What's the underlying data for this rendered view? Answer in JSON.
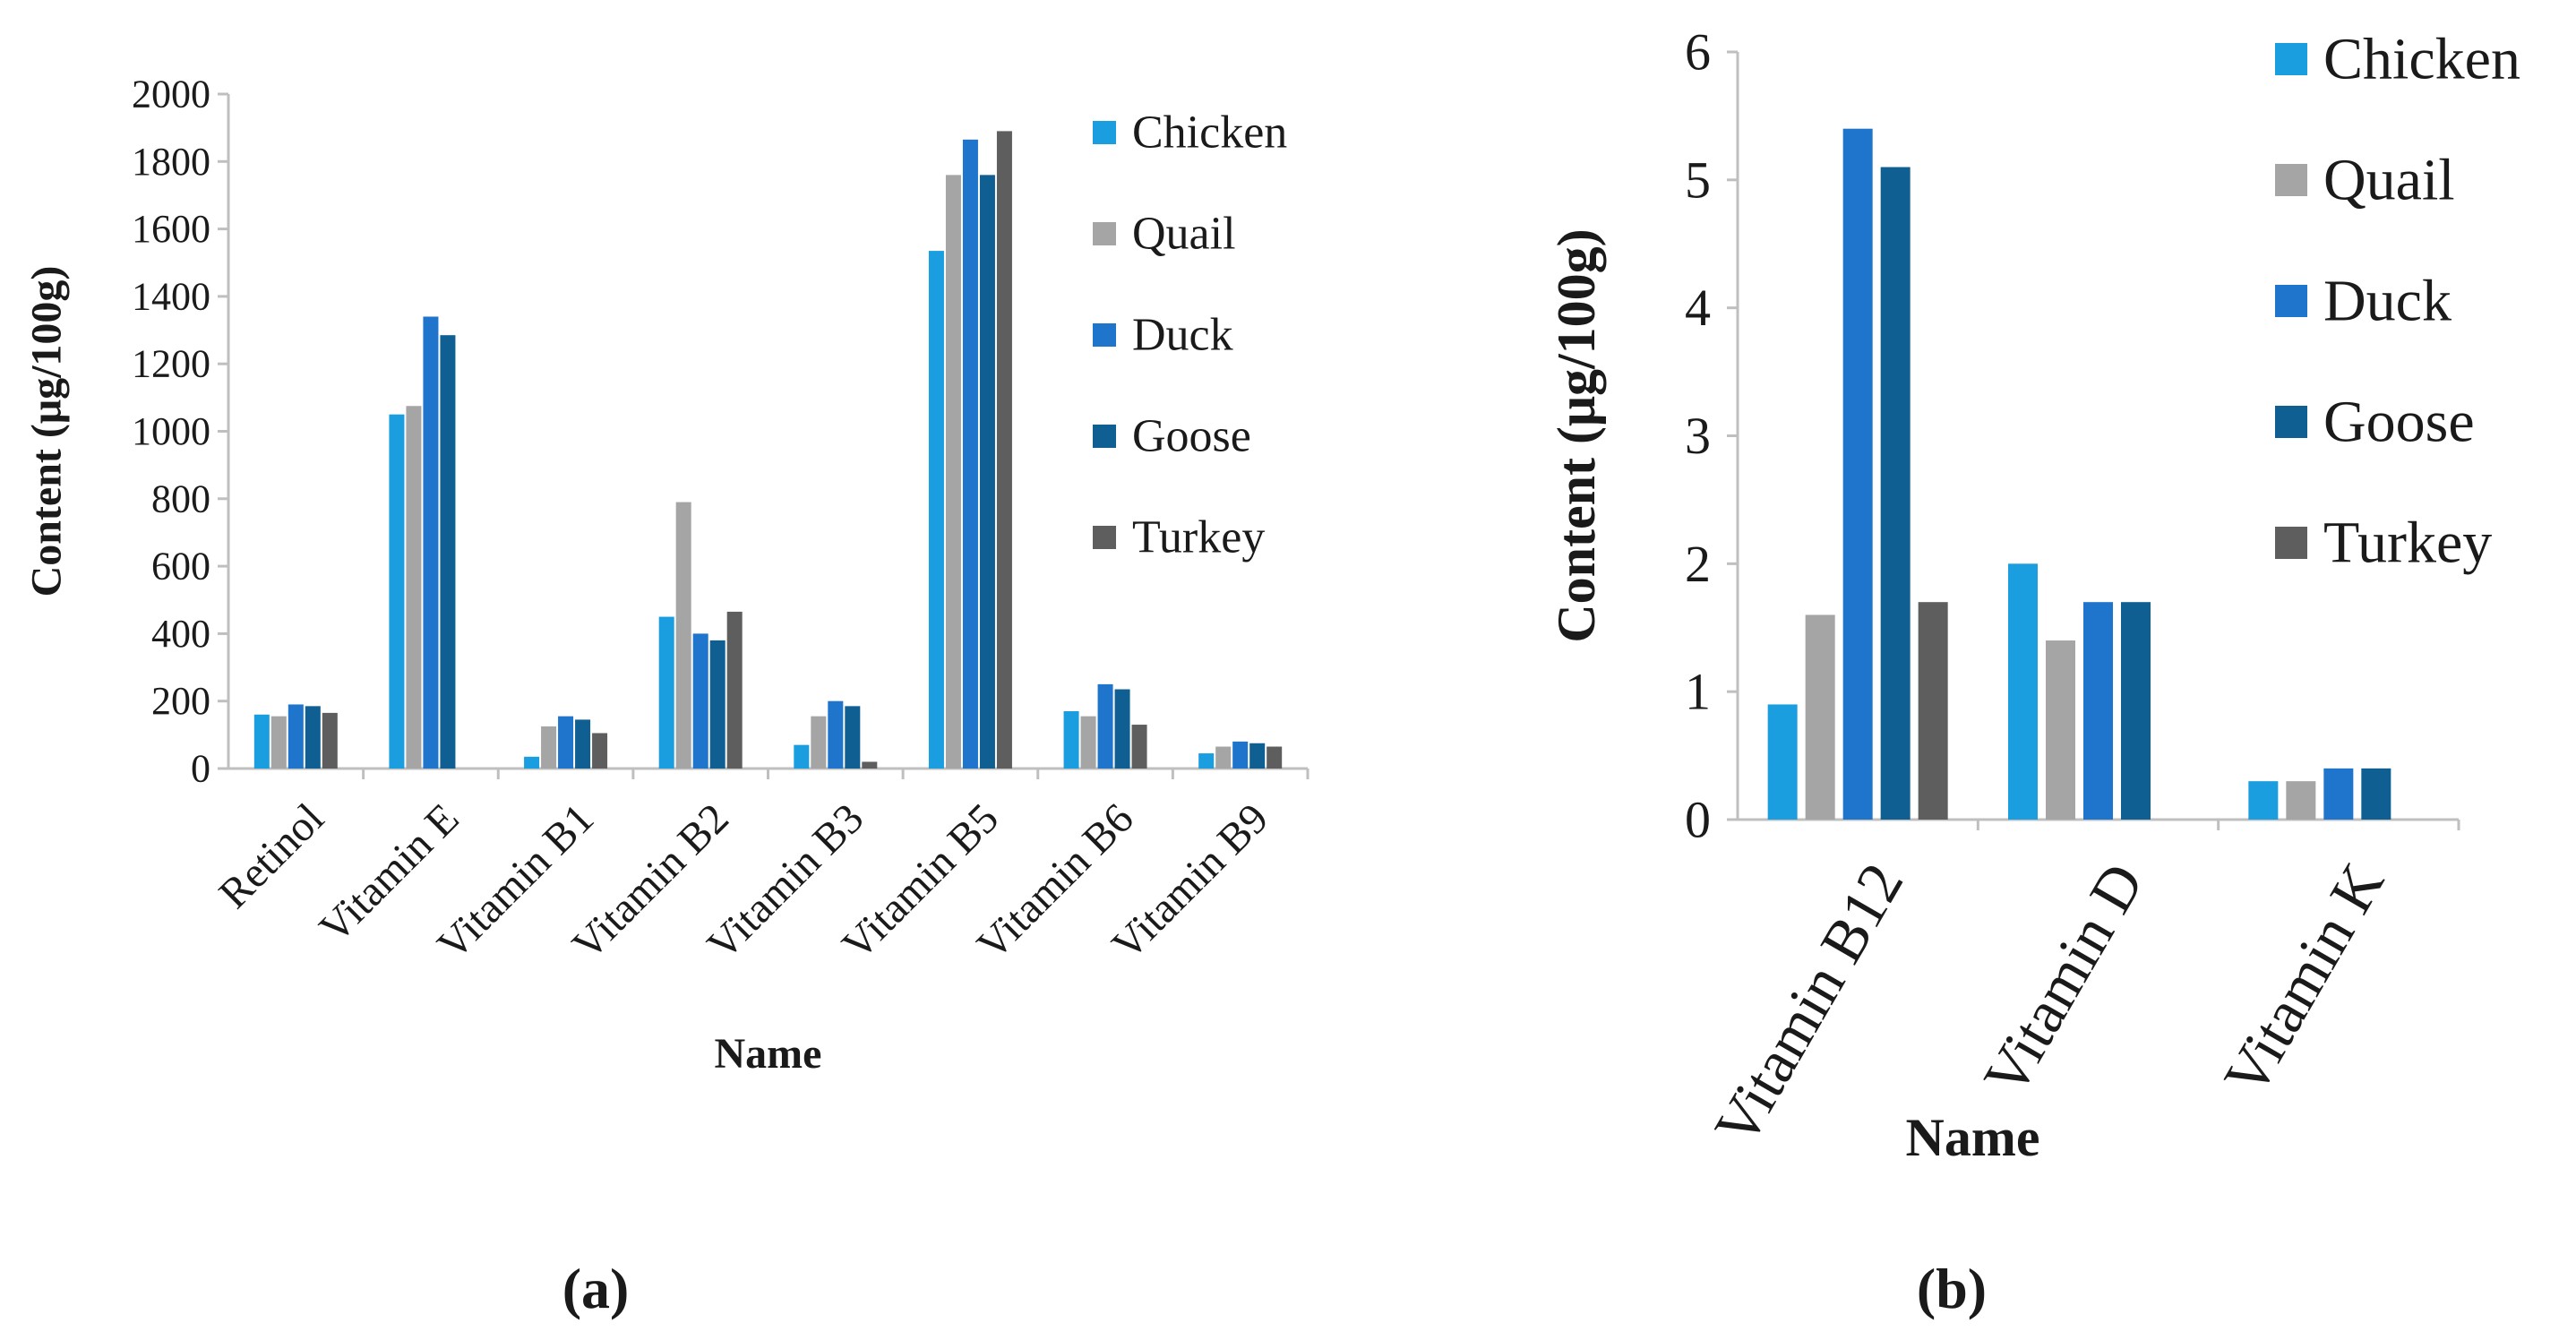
{
  "series_meta": [
    {
      "name": "Chicken",
      "color": "#1a9ee0"
    },
    {
      "name": "Quail",
      "color": "#a5a5a5"
    },
    {
      "name": "Duck",
      "color": "#1f74cc"
    },
    {
      "name": "Goose",
      "color": "#0f5f93"
    },
    {
      "name": "Turkey",
      "color": "#5e5e5e"
    }
  ],
  "chart_data": [
    {
      "type": "bar",
      "label": "(a)",
      "xlabel": "Name",
      "ylabel": "Content (μg/100g)",
      "ylim": [
        0,
        2000
      ],
      "yticks": [
        0,
        200,
        400,
        600,
        800,
        1000,
        1200,
        1400,
        1600,
        1800,
        2000
      ],
      "grid": false,
      "legend": "right",
      "categories": [
        "Retinol",
        "Vitamin E",
        "Vitamin B1",
        "Vitamin B2",
        "Vitamin B3",
        "Vitamin B5",
        "Vitamin B6",
        "Vitamin B9"
      ],
      "series": [
        {
          "name": "Chicken",
          "values": [
            160,
            1050,
            35,
            450,
            70,
            1535,
            170,
            45
          ]
        },
        {
          "name": "Quail",
          "values": [
            155,
            1075,
            125,
            790,
            155,
            1760,
            155,
            65
          ]
        },
        {
          "name": "Duck",
          "values": [
            190,
            1340,
            155,
            400,
            200,
            1865,
            250,
            80
          ]
        },
        {
          "name": "Goose",
          "values": [
            185,
            1285,
            145,
            380,
            185,
            1760,
            235,
            75
          ]
        },
        {
          "name": "Turkey",
          "values": [
            165,
            0,
            105,
            465,
            20,
            1890,
            130,
            65
          ]
        }
      ]
    },
    {
      "type": "bar",
      "label": "(b)",
      "xlabel": "Name",
      "ylabel": "Content (μg/100g)",
      "ylim": [
        0,
        6
      ],
      "yticks": [
        0,
        1,
        2,
        3,
        4,
        5,
        6
      ],
      "grid": false,
      "legend": "right",
      "categories": [
        "Vitamin B12",
        "Vitamin D",
        "Vitamin K"
      ],
      "series": [
        {
          "name": "Chicken",
          "values": [
            0.9,
            2.0,
            0.3
          ]
        },
        {
          "name": "Quail",
          "values": [
            1.6,
            1.4,
            0.3
          ]
        },
        {
          "name": "Duck",
          "values": [
            5.4,
            1.7,
            0.4
          ]
        },
        {
          "name": "Goose",
          "values": [
            5.1,
            1.7,
            0.4
          ]
        },
        {
          "name": "Turkey",
          "values": [
            1.7,
            0,
            0
          ]
        }
      ]
    }
  ]
}
